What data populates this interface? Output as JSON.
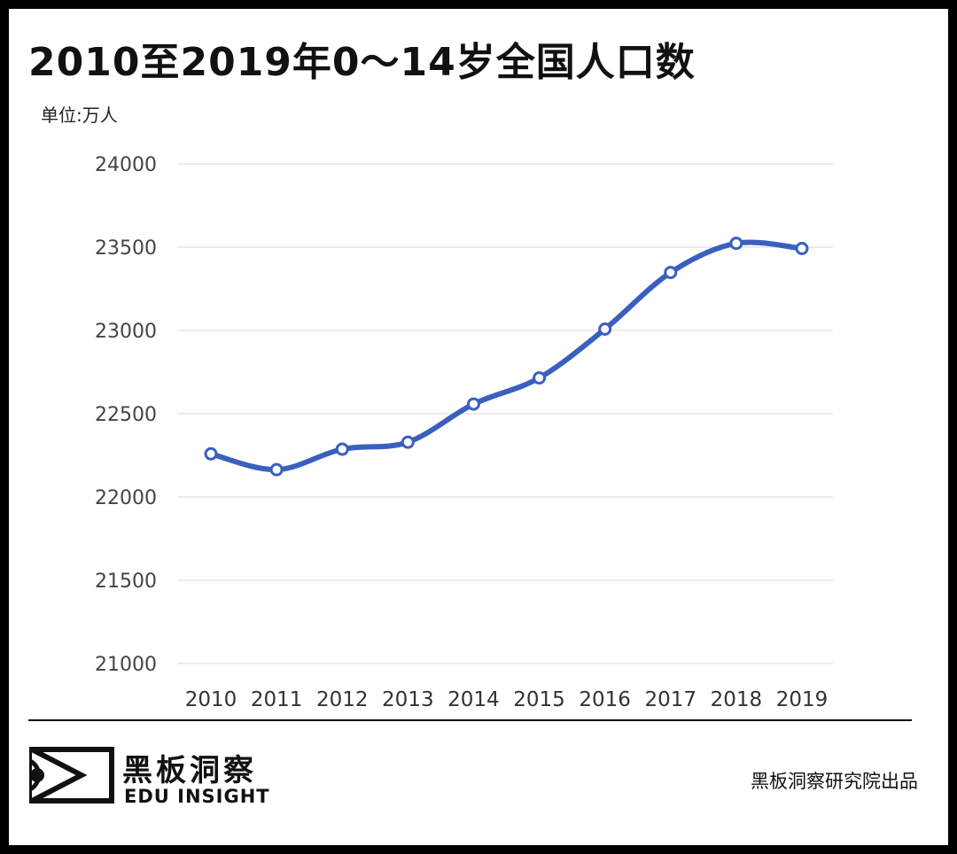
{
  "header": {
    "title": "2010至2019年0～14岁全国人口数",
    "unit_label": "单位:万人"
  },
  "chart_data": {
    "type": "line",
    "title": "2010至2019年0～14岁全国人口数",
    "ylabel": "单位:万人",
    "xlabel": "",
    "categories": [
      "2010",
      "2011",
      "2012",
      "2013",
      "2014",
      "2015",
      "2016",
      "2017",
      "2018",
      "2019"
    ],
    "series": [
      {
        "values": [
          22259,
          22164,
          22287,
          22329,
          22558,
          22715,
          23008,
          23348,
          23523,
          23492
        ]
      }
    ],
    "ylim": [
      21000,
      24000
    ],
    "yticks": [
      24000,
      23500,
      23000,
      22500,
      22000,
      21500,
      21000
    ],
    "grid": true,
    "smooth": true,
    "line_color": "#3a5fbf",
    "marker_fill": "#ffffff"
  },
  "footer": {
    "brand_cn": "黑板洞察",
    "brand_en": "EDU INSIGHT",
    "credit": "黑板洞察研究院出品"
  }
}
